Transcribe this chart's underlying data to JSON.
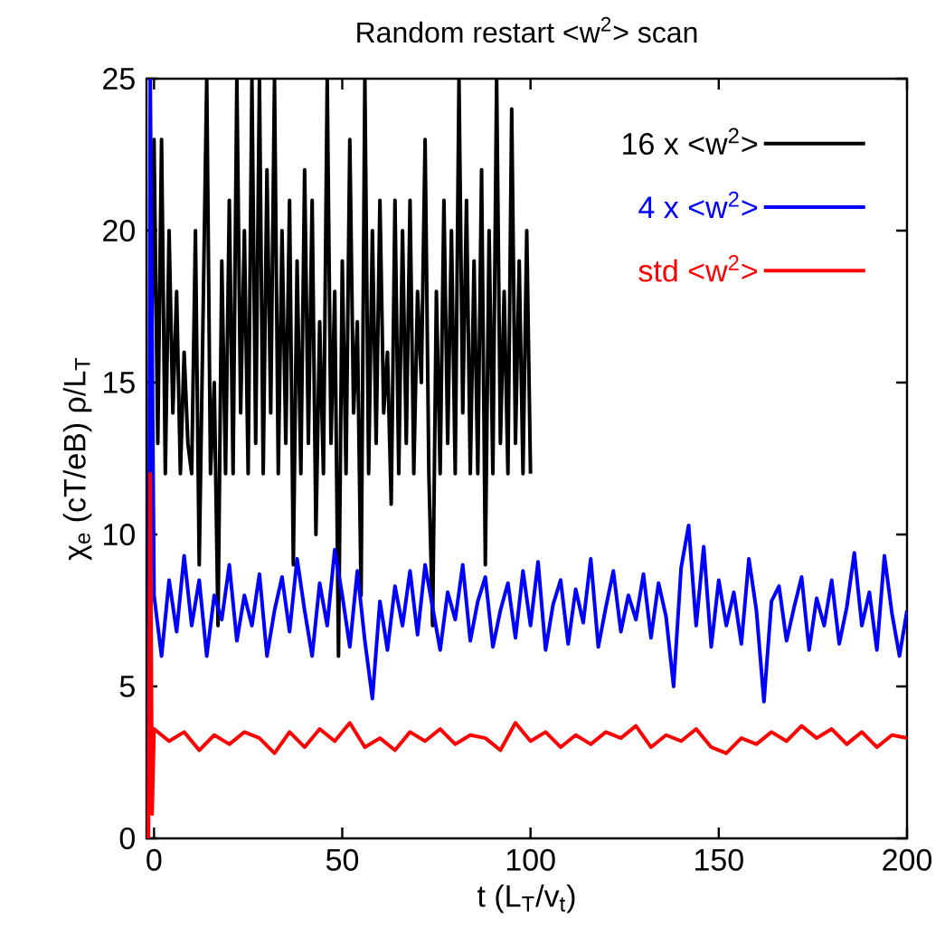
{
  "chart_data": {
    "type": "line",
    "title": "Random restart <w$^{2}$> scan",
    "xlabel": "t (L$_{T}$/v$_{t}$)",
    "ylabel": "χ$_{e}$ (cT/eB) ρ/L$_{T}$",
    "xlim": [
      -2,
      200
    ],
    "ylim": [
      0,
      25
    ],
    "xticks": [
      0,
      50,
      100,
      150,
      200
    ],
    "yticks": [
      0,
      5,
      10,
      15,
      20,
      25
    ],
    "legend": "top right",
    "series": [
      {
        "name": "16 x <w$^{2}$>",
        "color": "#000000",
        "x": [
          -1,
          0,
          1,
          2,
          3,
          4,
          5,
          6,
          7,
          8,
          9,
          10,
          11,
          12,
          13,
          14,
          15,
          16,
          17,
          18,
          19,
          20,
          21,
          22,
          23,
          24,
          25,
          26,
          27,
          28,
          29,
          30,
          31,
          32,
          33,
          34,
          35,
          36,
          37,
          38,
          39,
          40,
          41,
          42,
          43,
          44,
          45,
          46,
          47,
          48,
          49,
          50,
          51,
          52,
          53,
          54,
          55,
          56,
          57,
          58,
          59,
          60,
          61,
          62,
          63,
          64,
          65,
          66,
          67,
          68,
          69,
          70,
          71,
          72,
          73,
          74,
          75,
          76,
          77,
          78,
          79,
          80,
          81,
          82,
          83,
          84,
          85,
          86,
          87,
          88,
          89,
          90,
          91,
          92,
          93,
          94,
          95,
          96,
          97,
          98,
          99,
          100
        ],
        "values": [
          12,
          23,
          13,
          23,
          12,
          20,
          14,
          18,
          12,
          16,
          13,
          12,
          20,
          9,
          17,
          25,
          12,
          15,
          7,
          19,
          12,
          21,
          12,
          25,
          14,
          20,
          12,
          25,
          13,
          25,
          12,
          22,
          14,
          25,
          12,
          20,
          13,
          21,
          9,
          19,
          12,
          22,
          13,
          21,
          10,
          17,
          12,
          25,
          13,
          18,
          6,
          19,
          12,
          23,
          14,
          17,
          8,
          25,
          12,
          20,
          13,
          21,
          14,
          16,
          11,
          21,
          12,
          20,
          13,
          21,
          12,
          18,
          15,
          23,
          12,
          7,
          18,
          12,
          21,
          13,
          20,
          12,
          25,
          14,
          21,
          12,
          19,
          12,
          22,
          9,
          20,
          12,
          25,
          13,
          18,
          12,
          24,
          13,
          19,
          12,
          20,
          12
        ]
      },
      {
        "name": "4 x <w$^{2}$>",
        "color": "#0000ff",
        "x": [
          -1.5,
          -1,
          0,
          2,
          4,
          6,
          8,
          10,
          12,
          14,
          16,
          18,
          20,
          22,
          24,
          26,
          28,
          30,
          32,
          34,
          36,
          38,
          40,
          42,
          44,
          46,
          48,
          50,
          52,
          54,
          56,
          58,
          60,
          62,
          64,
          66,
          68,
          70,
          72,
          74,
          76,
          78,
          80,
          82,
          84,
          86,
          88,
          90,
          92,
          94,
          96,
          98,
          100,
          102,
          104,
          106,
          108,
          110,
          112,
          114,
          116,
          118,
          120,
          122,
          124,
          126,
          128,
          130,
          132,
          134,
          136,
          138,
          140,
          142,
          144,
          146,
          148,
          150,
          152,
          154,
          156,
          158,
          160,
          162,
          164,
          166,
          168,
          170,
          172,
          174,
          176,
          178,
          180,
          182,
          184,
          186,
          188,
          190,
          192,
          194,
          196,
          198,
          200
        ],
        "values": [
          0,
          25,
          8,
          6,
          8.5,
          6.8,
          9.3,
          7,
          8.5,
          6,
          8,
          7.2,
          9,
          6.5,
          8,
          7,
          8.7,
          6,
          7.5,
          8.6,
          6.8,
          9.2,
          7.5,
          6,
          8.4,
          7,
          9.5,
          8,
          6.3,
          8.8,
          6.5,
          4.6,
          7.8,
          6.2,
          8.3,
          7,
          8.8,
          6.7,
          9,
          7.6,
          6.2,
          8.1,
          7.2,
          9,
          6.5,
          7.8,
          8.6,
          6.3,
          7.5,
          8.4,
          6.6,
          8.8,
          7,
          9.1,
          6.2,
          7.7,
          8.5,
          6.4,
          8.2,
          7.1,
          9.2,
          6.3,
          7.6,
          8.8,
          6.8,
          8,
          7.2,
          8.7,
          6.6,
          8.4,
          7.3,
          5,
          8.9,
          10.3,
          7,
          9.6,
          6.3,
          8.5,
          7,
          8.1,
          6.4,
          9.2,
          7.5,
          4.5,
          7.8,
          8.3,
          6.5,
          7.6,
          8.6,
          6.2,
          7.9,
          7,
          8.5,
          6.4,
          7.6,
          9.4,
          7,
          8.1,
          6.2,
          9.3,
          7.4,
          6,
          7.5
        ]
      },
      {
        "name": "std <w$^{2}$>",
        "color": "#ff0000",
        "x": [
          -1.5,
          -1,
          -0.5,
          0,
          4,
          8,
          12,
          16,
          20,
          24,
          28,
          32,
          36,
          40,
          44,
          48,
          52,
          56,
          60,
          64,
          68,
          72,
          76,
          80,
          84,
          88,
          92,
          96,
          100,
          104,
          108,
          112,
          116,
          120,
          124,
          128,
          132,
          136,
          140,
          144,
          148,
          152,
          156,
          160,
          164,
          168,
          172,
          176,
          180,
          184,
          188,
          192,
          196,
          200
        ],
        "values": [
          0,
          12,
          0.8,
          3.6,
          3.2,
          3.5,
          2.9,
          3.4,
          3.1,
          3.5,
          3.3,
          2.8,
          3.5,
          3.0,
          3.6,
          3.2,
          3.8,
          3.0,
          3.3,
          2.9,
          3.5,
          3.2,
          3.6,
          3.1,
          3.4,
          3.3,
          2.9,
          3.8,
          3.2,
          3.5,
          3.0,
          3.4,
          3.1,
          3.5,
          3.3,
          3.7,
          3.0,
          3.4,
          3.2,
          3.6,
          3.0,
          2.8,
          3.3,
          3.1,
          3.5,
          3.2,
          3.7,
          3.3,
          3.6,
          3.1,
          3.5,
          3.0,
          3.4,
          3.3
        ]
      }
    ]
  }
}
